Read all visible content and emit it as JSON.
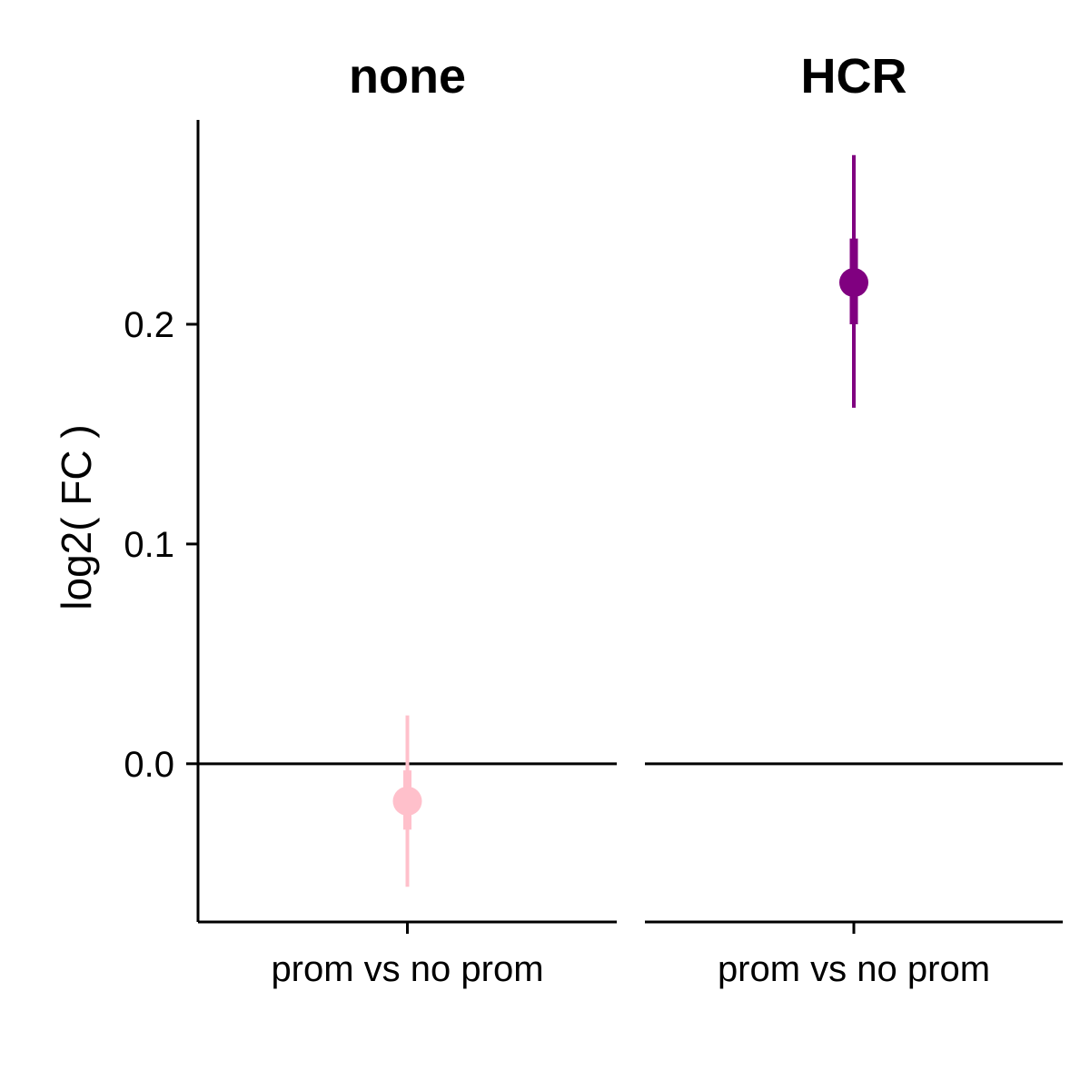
{
  "chart_data": {
    "type": "pointrange",
    "ylabel": "log2( FC )",
    "ylim": [
      -0.072,
      0.293
    ],
    "yticks": [
      0.0,
      0.1,
      0.2
    ],
    "ytick_labels": [
      "0.0",
      "0.1",
      "0.2"
    ],
    "reference_line_y": 0.0,
    "grid": false,
    "legend": "none",
    "panels": [
      {
        "title": "none",
        "category": "prom vs no prom",
        "color": "#FFC0CB",
        "y": -0.017,
        "inner_low": -0.03,
        "inner_high": -0.003,
        "outer_low": -0.056,
        "outer_high": 0.022
      },
      {
        "title": "HCR",
        "category": "prom vs no prom",
        "color": "#800080",
        "y": 0.219,
        "inner_low": 0.2,
        "inner_high": 0.239,
        "outer_low": 0.162,
        "outer_high": 0.277
      }
    ]
  }
}
